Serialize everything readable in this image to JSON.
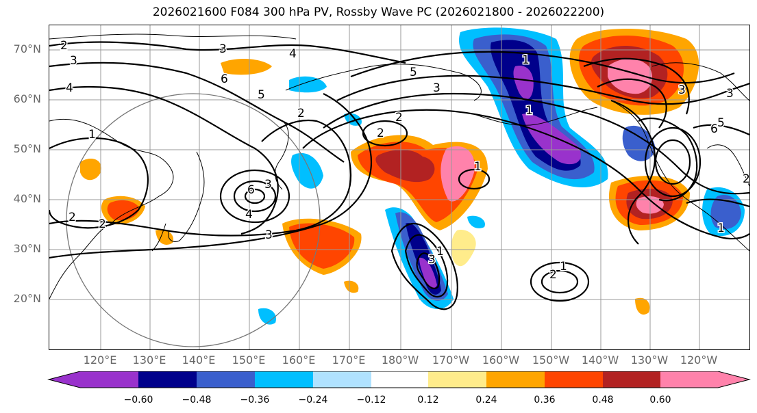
{
  "title": "2026021600 F084 300 hPa PV, Rossby Wave PC (2026021800 - 2026022200)",
  "lat_labels": [
    "70°N",
    "60°N",
    "50°N",
    "40°N",
    "30°N",
    "20°N"
  ],
  "lon_labels": [
    "120°E",
    "130°E",
    "140°E",
    "150°E",
    "160°E",
    "170°E",
    "180°W",
    "170°W",
    "160°W",
    "150°W",
    "140°W",
    "130°W",
    "120°W"
  ],
  "colorbar": {
    "ticks": [
      "−0.60",
      "−0.48",
      "−0.36",
      "−0.24",
      "−0.12",
      "0.12",
      "0.24",
      "0.36",
      "0.48",
      "0.60"
    ],
    "colors": [
      "#9932CC",
      "#00008B",
      "#3A5FCD",
      "#00BFFF",
      "#B0E2FF",
      "#FFFFFF",
      "#FFEC8B",
      "#FFA500",
      "#FF4500",
      "#B22222",
      "#FF82AB"
    ]
  },
  "contour_labels": [
    "2",
    "3",
    "4",
    "3",
    "4",
    "5",
    "6",
    "5",
    "2",
    "2",
    "1",
    "3",
    "2",
    "2",
    "6",
    "3",
    "4",
    "3",
    "2",
    "1",
    "3",
    "2",
    "1",
    "5",
    "6",
    "3",
    "1",
    "2",
    "1",
    "1",
    "1",
    "3"
  ]
}
